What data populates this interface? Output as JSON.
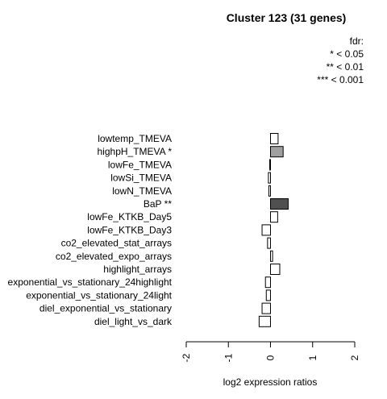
{
  "chart_data": {
    "type": "bar",
    "orientation": "horizontal",
    "title": "Cluster 123 (31 genes)",
    "legend": {
      "title": "fdr:",
      "entries": [
        "* < 0.05",
        "** < 0.01",
        "*** < 0.001"
      ],
      "placement": "top-right"
    },
    "categories": [
      "lowtemp_TMEVA",
      "highpH_TMEVA *",
      "lowFe_TMEVA",
      "lowSi_TMEVA",
      "lowN_TMEVA",
      "BaP **",
      "lowFe_KTKB_Day5",
      "lowFe_KTKB_Day3",
      "co2_elevated_stat_arrays",
      "co2_elevated_expo_arrays",
      "highlight_arrays",
      "exponential_vs_stationary_24highlight",
      "exponential_vs_stationary_24light",
      "diel_exponential_vs_stationary",
      "diel_light_vs_dark"
    ],
    "values": [
      0.18,
      0.3,
      -0.02,
      -0.05,
      -0.04,
      0.42,
      0.17,
      -0.2,
      -0.07,
      0.05,
      0.22,
      -0.12,
      -0.1,
      -0.2,
      -0.27
    ],
    "bar_colors": [
      "#ffffff",
      "#a0a0a0",
      "#ffffff",
      "#ffffff",
      "#ffffff",
      "#505050",
      "#ffffff",
      "#ffffff",
      "#ffffff",
      "#ffffff",
      "#ffffff",
      "#ffffff",
      "#ffffff",
      "#ffffff",
      "#ffffff"
    ],
    "xlabel": "log2 expression ratios",
    "xlim": [
      -2,
      2
    ],
    "xticks": [
      -2,
      -1,
      0,
      1,
      2
    ],
    "grid": false
  }
}
